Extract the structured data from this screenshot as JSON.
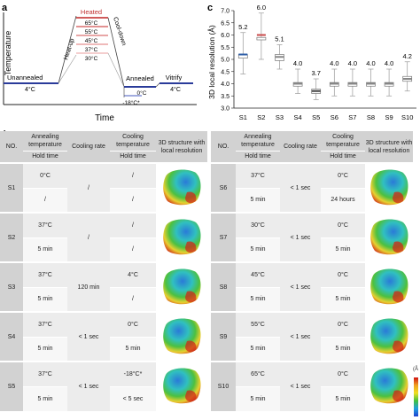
{
  "panel_a": {
    "letter": "a",
    "ylabel": "Temperature",
    "xlabel": "Time",
    "labels": {
      "unannealed": "Unannealed",
      "unannealed_temp": "4°C",
      "heat_up": "Heat-up",
      "heated": "Heated",
      "cool_down": "Cool-down",
      "annealed": "Annealed",
      "vitrify": "Vitrify",
      "vitrify_temp": "4°C",
      "zero": "0°C",
      "minus18": "-18°C*"
    },
    "heated_temps": [
      "65°C",
      "55°C",
      "45°C",
      "37°C",
      "30°C"
    ],
    "colors": {
      "unannealed": "#2a3b9a",
      "annealed": "#2a3b9a",
      "heated": "#d03030",
      "heated_light": "#e9a0a0"
    }
  },
  "chart_data": {
    "type": "box",
    "letter": "c",
    "ylabel": "3D local resolution (Å)",
    "categories": [
      "S1",
      "S2",
      "S3",
      "S4",
      "S5",
      "S6",
      "S7",
      "S8",
      "S9",
      "S10"
    ],
    "medians": [
      5.2,
      6.0,
      5.1,
      4.0,
      3.7,
      4.0,
      4.0,
      4.0,
      4.0,
      4.2
    ],
    "median_labels": [
      "5.2",
      "6.0",
      "5.1",
      "4.0",
      "3.7",
      "4.0",
      "4.0",
      "4.0",
      "4.0",
      "4.2"
    ],
    "q1": [
      5.05,
      5.8,
      4.95,
      3.9,
      3.6,
      3.9,
      3.9,
      3.9,
      3.9,
      4.1
    ],
    "q3": [
      5.2,
      5.9,
      5.2,
      4.05,
      3.78,
      4.05,
      4.05,
      4.05,
      4.05,
      4.3
    ],
    "whisker_low": [
      4.4,
      5.0,
      4.6,
      3.6,
      3.35,
      3.5,
      3.5,
      3.5,
      3.5,
      3.7
    ],
    "whisker_high": [
      6.1,
      6.9,
      5.6,
      4.6,
      4.2,
      4.6,
      4.6,
      4.6,
      4.6,
      4.9
    ],
    "colors": [
      "#2f5fa8",
      "#c94a4a",
      "#888888",
      "#888888",
      "#444444",
      "#888888",
      "#888888",
      "#888888",
      "#888888",
      "#888888"
    ],
    "ylim": [
      3.0,
      7.0
    ],
    "yticks": [
      "3.0",
      "3.5",
      "4.0",
      "4.5",
      "5.0",
      "5.5",
      "6.0",
      "6.5",
      "7.0"
    ],
    "grid": false
  },
  "table": {
    "letter": "d",
    "header": {
      "no": "NO.",
      "annealing_temp": "Annealing temperature",
      "hold_time": "Hold time",
      "cooling_rate": "Cooling rate",
      "cooling_temp": "Cooling temperature",
      "structure": "3D structure with local resolution"
    },
    "left_rows": [
      {
        "no": "S1",
        "anneal_temp": "0°C",
        "hold_time": "/",
        "rate": "/",
        "cool_temp": "/",
        "cool_hold": "/"
      },
      {
        "no": "S2",
        "anneal_temp": "37°C",
        "hold_time": "5 min",
        "rate": "/",
        "cool_temp": "/",
        "cool_hold": "/"
      },
      {
        "no": "S3",
        "anneal_temp": "37°C",
        "hold_time": "5 min",
        "rate": "120 min",
        "cool_temp": "4°C",
        "cool_hold": "/"
      },
      {
        "no": "S4",
        "anneal_temp": "37°C",
        "hold_time": "5 min",
        "rate": "< 1 sec",
        "cool_temp": "0°C",
        "cool_hold": "5 min"
      },
      {
        "no": "S5",
        "anneal_temp": "37°C",
        "hold_time": "5 min",
        "rate": "< 1 sec",
        "cool_temp": "-18°C*",
        "cool_hold": "< 5 sec"
      }
    ],
    "right_rows": [
      {
        "no": "S6",
        "anneal_temp": "37°C",
        "hold_time": "5 min",
        "rate": "< 1 sec",
        "cool_temp": "0°C",
        "cool_hold": "24 hours"
      },
      {
        "no": "S7",
        "anneal_temp": "30°C",
        "hold_time": "5 min",
        "rate": "< 1 sec",
        "cool_temp": "0°C",
        "cool_hold": "5 min"
      },
      {
        "no": "S8",
        "anneal_temp": "45°C",
        "hold_time": "5 min",
        "rate": "< 1 sec",
        "cool_temp": "0°C",
        "cool_hold": "5 min"
      },
      {
        "no": "S9",
        "anneal_temp": "55°C",
        "hold_time": "5 min",
        "rate": "< 1 sec",
        "cool_temp": "0°C",
        "cool_hold": "5 min"
      },
      {
        "no": "S10",
        "anneal_temp": "65°C",
        "hold_time": "5 min",
        "rate": "< 1 sec",
        "cool_temp": "0°C",
        "cool_hold": "5 min"
      }
    ],
    "scale_label": "(Å"
  }
}
